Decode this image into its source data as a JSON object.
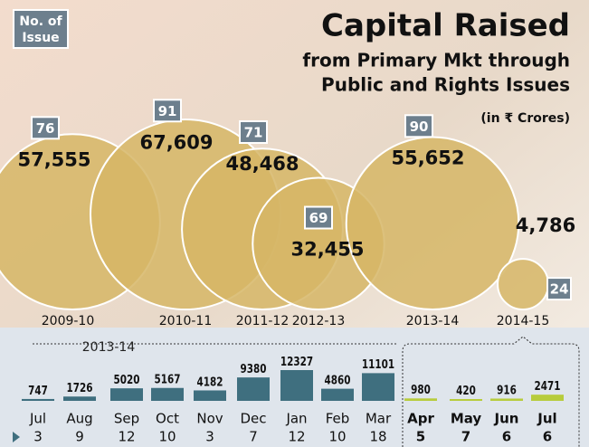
{
  "title": "Capital Raised",
  "subtitle": [
    "from Primary Mkt through",
    "Public and Rights Issues"
  ],
  "unit": "(in ₹ Crores)",
  "legend": "No. of Issue",
  "chart_data": [
    {
      "type": "bubble",
      "color": "#d6b666",
      "categories": [
        "2009-10",
        "2010-11",
        "2011-12",
        "2012-13",
        "2013-14",
        "2014-15"
      ],
      "values": [
        57555,
        67609,
        48468,
        32455,
        55652,
        4786
      ],
      "value_labels": [
        "57,555",
        "67,609",
        "48,468",
        "32,455",
        "55,652",
        "4,786"
      ],
      "issues": [
        76,
        91,
        71,
        69,
        90,
        24
      ]
    },
    {
      "type": "bar",
      "series": [
        {
          "name": "2013-14",
          "color": "#3f6f7f",
          "categories": [
            "Jul",
            "Aug",
            "Sep",
            "Oct",
            "Nov",
            "Dec",
            "Jan",
            "Feb",
            "Mar"
          ],
          "values": [
            747,
            1726,
            5020,
            5167,
            4182,
            9380,
            12327,
            4860,
            11101
          ],
          "issues": [
            3,
            9,
            12,
            10,
            3,
            7,
            12,
            10,
            18
          ]
        },
        {
          "color": "#b7cc3c",
          "categories": [
            "Apr",
            "May",
            "Jun",
            "Jul"
          ],
          "values": [
            980,
            420,
            916,
            2471
          ],
          "issues": [
            5,
            7,
            6,
            6
          ]
        }
      ]
    }
  ]
}
